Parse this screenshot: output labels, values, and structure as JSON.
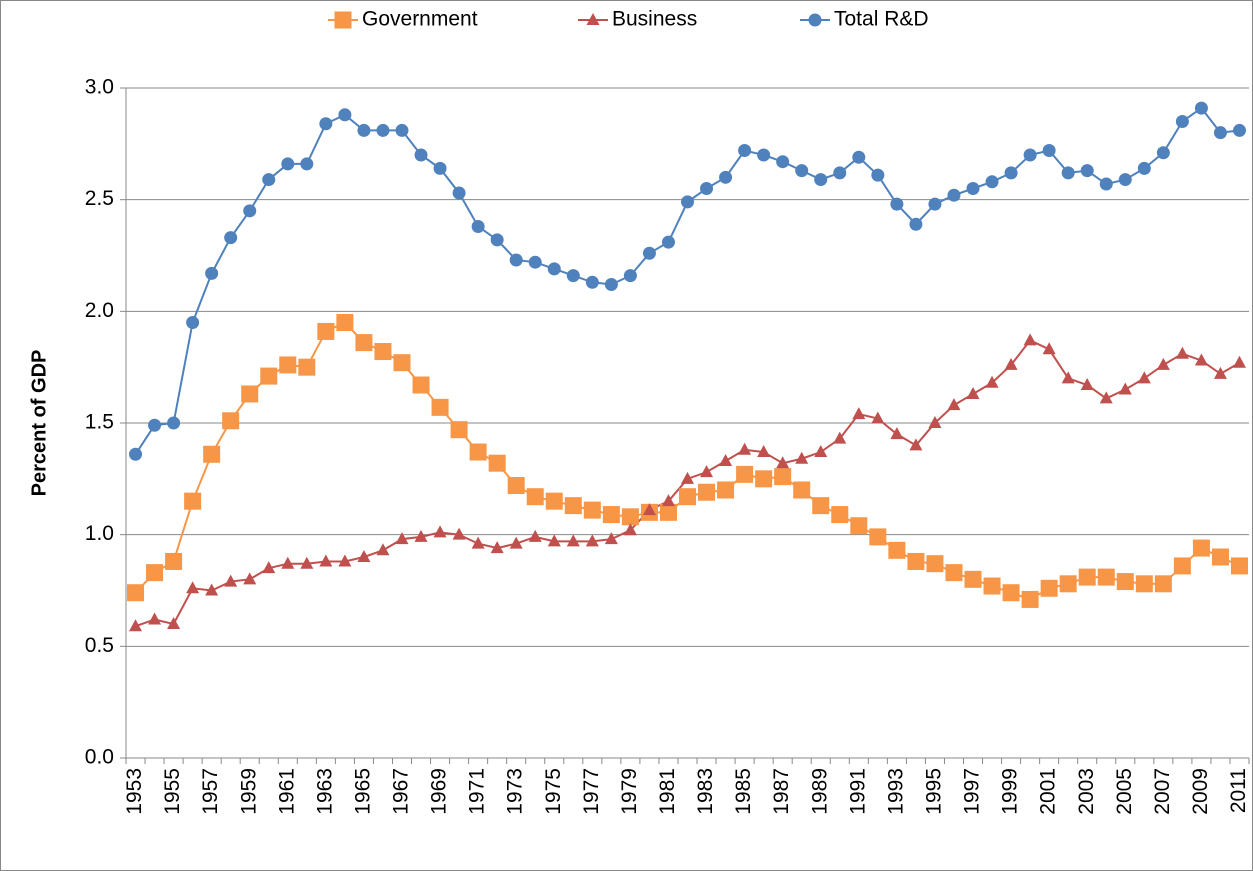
{
  "chart_data": {
    "type": "line",
    "ylabel": "Percent of GDP",
    "categories": [
      "1953",
      null,
      "1955",
      null,
      "1957",
      null,
      "1959",
      null,
      "1961",
      null,
      "1963",
      null,
      "1965",
      null,
      "1967",
      null,
      "1969",
      null,
      "1971",
      null,
      "1973",
      null,
      "1975",
      null,
      "1977",
      null,
      "1979",
      null,
      "1981",
      null,
      "1983",
      null,
      "1985",
      null,
      "1987",
      null,
      "1989",
      null,
      "1991",
      null,
      "1993",
      null,
      "1995",
      null,
      "1997",
      null,
      "1999",
      null,
      "2001",
      null,
      "2003",
      null,
      "2005",
      null,
      "2007",
      null,
      "2009",
      null,
      "2011"
    ],
    "series": [
      {
        "name": "Government",
        "color": "#f79646",
        "marker": "square",
        "values": [
          0.74,
          0.83,
          0.88,
          1.15,
          1.36,
          1.51,
          1.63,
          1.71,
          1.76,
          1.75,
          1.91,
          1.95,
          1.86,
          1.82,
          1.77,
          1.67,
          1.57,
          1.47,
          1.37,
          1.32,
          1.22,
          1.17,
          1.15,
          1.13,
          1.11,
          1.09,
          1.08,
          1.1,
          1.1,
          1.17,
          1.19,
          1.2,
          1.27,
          1.25,
          1.26,
          1.2,
          1.13,
          1.09,
          1.04,
          0.99,
          0.93,
          0.88,
          0.87,
          0.83,
          0.8,
          0.77,
          0.74,
          0.71,
          0.76,
          0.78,
          0.81,
          0.81,
          0.79,
          0.78,
          0.78,
          0.86,
          0.94,
          0.9,
          0.86
        ]
      },
      {
        "name": "Business",
        "color": "#c0504d",
        "marker": "triangle",
        "values": [
          0.59,
          0.62,
          0.6,
          0.76,
          0.75,
          0.79,
          0.8,
          0.85,
          0.87,
          0.87,
          0.88,
          0.88,
          0.9,
          0.93,
          0.98,
          0.99,
          1.01,
          1.0,
          0.96,
          0.94,
          0.96,
          0.99,
          0.97,
          0.97,
          0.97,
          0.98,
          1.02,
          1.11,
          1.15,
          1.25,
          1.28,
          1.33,
          1.38,
          1.37,
          1.32,
          1.34,
          1.37,
          1.43,
          1.54,
          1.52,
          1.45,
          1.4,
          1.5,
          1.58,
          1.63,
          1.68,
          1.76,
          1.87,
          1.83,
          1.7,
          1.67,
          1.61,
          1.65,
          1.7,
          1.76,
          1.81,
          1.78,
          1.72,
          1.77
        ]
      },
      {
        "name": "Total R&D",
        "color": "#4f81bd",
        "marker": "circle",
        "values": [
          1.36,
          1.49,
          1.5,
          1.95,
          2.17,
          2.33,
          2.45,
          2.59,
          2.66,
          2.66,
          2.84,
          2.88,
          2.81,
          2.81,
          2.81,
          2.7,
          2.64,
          2.53,
          2.38,
          2.32,
          2.23,
          2.22,
          2.19,
          2.16,
          2.13,
          2.12,
          2.16,
          2.26,
          2.31,
          2.49,
          2.55,
          2.6,
          2.72,
          2.7,
          2.67,
          2.63,
          2.59,
          2.62,
          2.69,
          2.61,
          2.48,
          2.39,
          2.48,
          2.52,
          2.55,
          2.58,
          2.62,
          2.7,
          2.72,
          2.62,
          2.63,
          2.57,
          2.59,
          2.64,
          2.71,
          2.85,
          2.91,
          2.8,
          2.81
        ]
      }
    ],
    "ylim": [
      0,
      3
    ],
    "yticks": [
      {
        "value": 0,
        "label": "0.0"
      },
      {
        "value": 0.5,
        "label": "0.5"
      },
      {
        "value": 1,
        "label": "1.0"
      },
      {
        "value": 1.5,
        "label": "1.5"
      },
      {
        "value": 2,
        "label": "2.0"
      },
      {
        "value": 2.5,
        "label": "2.5"
      },
      {
        "value": 3,
        "label": "3.0"
      }
    ],
    "grid": true,
    "legend": "top"
  }
}
